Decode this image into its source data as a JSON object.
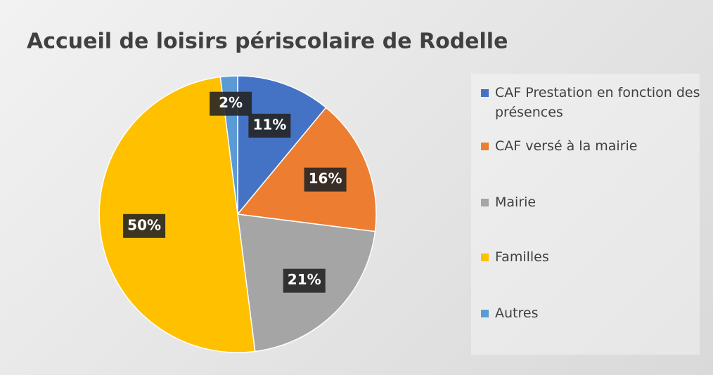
{
  "chart_data": {
    "type": "pie",
    "title": "Accueil de loisirs périscolaire de Rodelle",
    "categories": [
      "CAF Prestation en fonction des présences",
      "CAF versé à la mairie",
      "Mairie",
      "Familles",
      "Autres"
    ],
    "values": [
      11,
      16,
      21,
      50,
      2
    ],
    "value_labels": [
      "11%",
      "16%",
      "21%",
      "50%",
      "2%"
    ],
    "colors": [
      "#4472c4",
      "#ed7d31",
      "#a5a5a5",
      "#ffc000",
      "#5b9bd5"
    ],
    "legend": "right"
  }
}
